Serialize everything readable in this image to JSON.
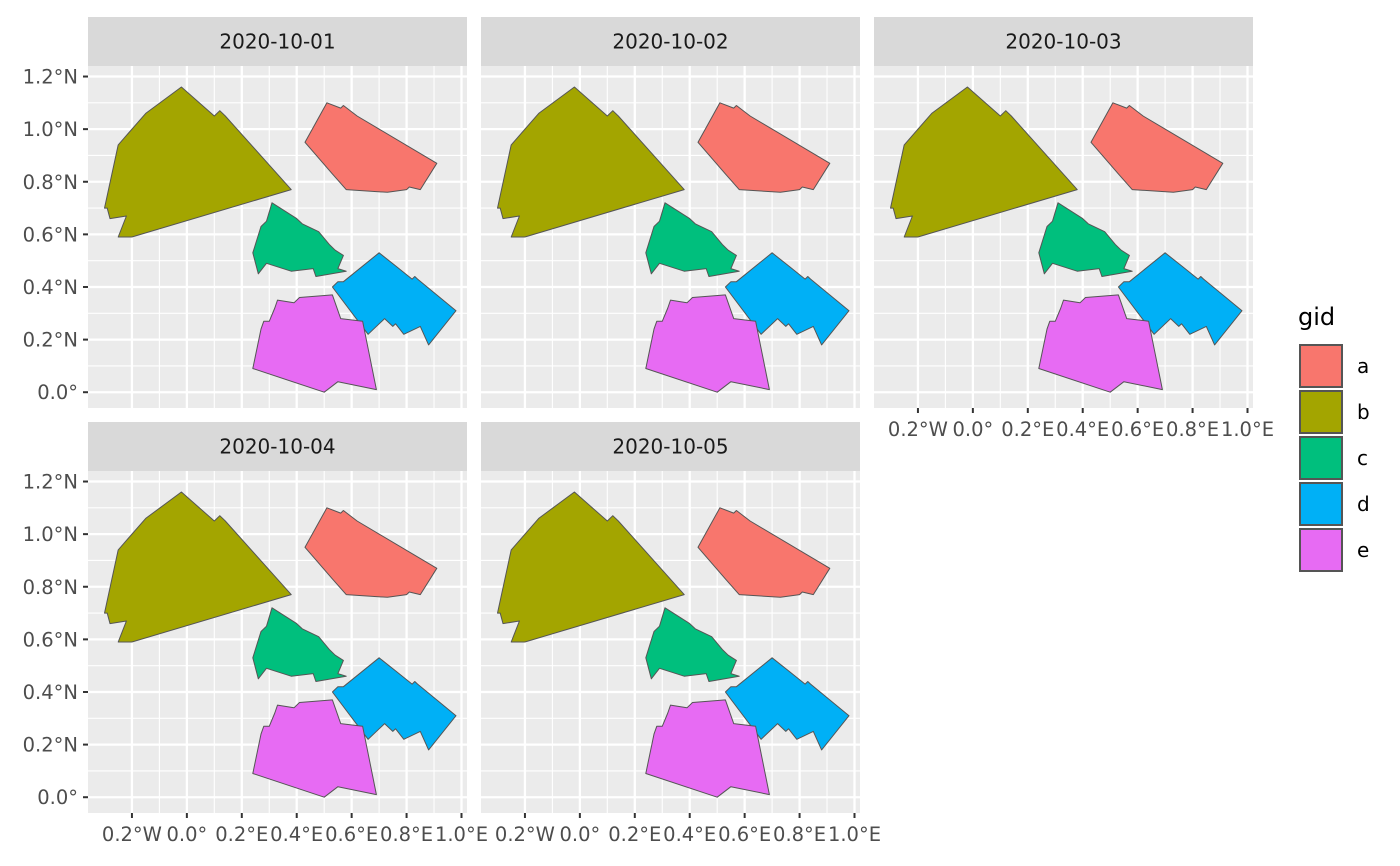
{
  "chart_data": {
    "type": "map",
    "facet_by": "date",
    "facets": [
      "2020-10-01",
      "2020-10-02",
      "2020-10-03",
      "2020-10-04",
      "2020-10-05"
    ],
    "x_axis": {
      "values": [
        -0.2,
        0.0,
        0.2,
        0.4,
        0.6,
        0.8,
        1.0
      ],
      "labels": [
        "0.2°W",
        "0.0°",
        "0.2°E",
        "0.4°E",
        "0.6°E",
        "0.8°E",
        "1.0°E"
      ]
    },
    "y_axis": {
      "values": [
        0.0,
        0.2,
        0.4,
        0.6,
        0.8,
        1.0,
        1.2
      ],
      "labels": [
        "0.0°",
        "0.2°N",
        "0.4°N",
        "0.6°N",
        "0.8°N",
        "1.0°N",
        "1.2°N"
      ]
    },
    "xlim": [
      -0.36,
      1.02
    ],
    "ylim": [
      -0.06,
      1.24
    ],
    "grid": true,
    "legend": {
      "title": "gid",
      "position": "right",
      "entries": [
        {
          "label": "a",
          "color": "#F8766D"
        },
        {
          "label": "b",
          "color": "#A3A500"
        },
        {
          "label": "c",
          "color": "#00BF7D"
        },
        {
          "label": "d",
          "color": "#00B0F6"
        },
        {
          "label": "e",
          "color": "#E76BF3"
        }
      ]
    },
    "polygons": [
      {
        "gid": "a",
        "coords": [
          [
            0.43,
            0.95
          ],
          [
            0.51,
            1.1
          ],
          [
            0.56,
            1.08
          ],
          [
            0.57,
            1.09
          ],
          [
            0.62,
            1.05
          ],
          [
            0.91,
            0.87
          ],
          [
            0.85,
            0.77
          ],
          [
            0.81,
            0.78
          ],
          [
            0.8,
            0.77
          ],
          [
            0.73,
            0.76
          ],
          [
            0.58,
            0.77
          ],
          [
            0.53,
            0.83
          ]
        ]
      },
      {
        "gid": "b",
        "coords": [
          [
            -0.3,
            0.7
          ],
          [
            -0.25,
            0.94
          ],
          [
            -0.15,
            1.06
          ],
          [
            -0.02,
            1.16
          ],
          [
            0.1,
            1.05
          ],
          [
            0.12,
            1.07
          ],
          [
            0.14,
            1.05
          ],
          [
            0.38,
            0.77
          ],
          [
            -0.2,
            0.59
          ],
          [
            -0.25,
            0.59
          ],
          [
            -0.22,
            0.67
          ],
          [
            -0.28,
            0.66
          ],
          [
            -0.29,
            0.7
          ]
        ]
      },
      {
        "gid": "c",
        "coords": [
          [
            0.24,
            0.53
          ],
          [
            0.27,
            0.63
          ],
          [
            0.29,
            0.65
          ],
          [
            0.31,
            0.72
          ],
          [
            0.4,
            0.66
          ],
          [
            0.42,
            0.64
          ],
          [
            0.48,
            0.61
          ],
          [
            0.52,
            0.56
          ],
          [
            0.54,
            0.54
          ],
          [
            0.57,
            0.52
          ],
          [
            0.55,
            0.47
          ],
          [
            0.58,
            0.46
          ],
          [
            0.47,
            0.44
          ],
          [
            0.46,
            0.47
          ],
          [
            0.38,
            0.46
          ],
          [
            0.29,
            0.49
          ],
          [
            0.26,
            0.45
          ]
        ]
      },
      {
        "gid": "d",
        "coords": [
          [
            0.53,
            0.4
          ],
          [
            0.66,
            0.22
          ],
          [
            0.72,
            0.28
          ],
          [
            0.75,
            0.25
          ],
          [
            0.76,
            0.26
          ],
          [
            0.79,
            0.22
          ],
          [
            0.85,
            0.25
          ],
          [
            0.88,
            0.18
          ],
          [
            0.98,
            0.31
          ],
          [
            0.84,
            0.43
          ],
          [
            0.83,
            0.44
          ],
          [
            0.82,
            0.43
          ],
          [
            0.76,
            0.48
          ],
          [
            0.7,
            0.53
          ],
          [
            0.57,
            0.42
          ],
          [
            0.55,
            0.42
          ]
        ]
      },
      {
        "gid": "e",
        "coords": [
          [
            0.24,
            0.09
          ],
          [
            0.27,
            0.24
          ],
          [
            0.28,
            0.27
          ],
          [
            0.3,
            0.27
          ],
          [
            0.32,
            0.32
          ],
          [
            0.33,
            0.35
          ],
          [
            0.39,
            0.34
          ],
          [
            0.41,
            0.36
          ],
          [
            0.53,
            0.37
          ],
          [
            0.56,
            0.28
          ],
          [
            0.64,
            0.27
          ],
          [
            0.69,
            0.01
          ],
          [
            0.55,
            0.04
          ],
          [
            0.5,
            0.0
          ]
        ]
      }
    ]
  }
}
